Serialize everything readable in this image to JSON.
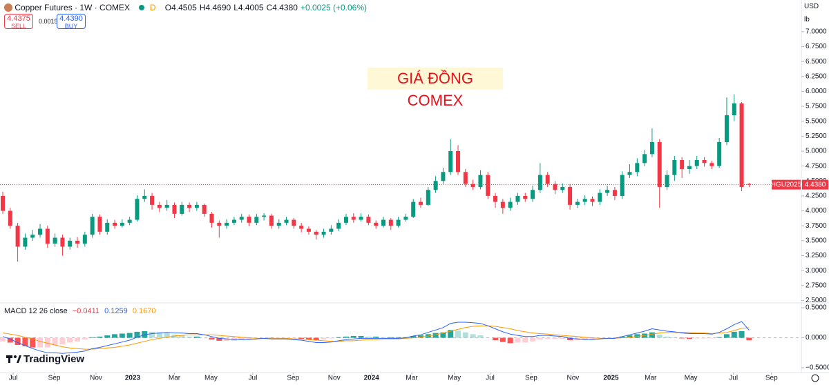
{
  "header": {
    "symbol": "Copper Futures · 1W · COMEX",
    "interval_badge": "D",
    "ohlc": [
      "O4.4505",
      "H4.4690",
      "L4.4005",
      "C4.4380",
      "+0.0025 (+0.06%)"
    ],
    "sell_price": "4.4375",
    "sell": "SELL",
    "spread": "0.0015",
    "buy_price": "4.4390",
    "buy": "BUY",
    "currency": "USD",
    "unit": "lb",
    "brand": "TradingView"
  },
  "chart_data": [
    {
      "type": "candlestick",
      "annotation": "GIÁ ĐỒNG COMEX",
      "up_color": "#089981",
      "down_color": "#f23645",
      "last_price_label": {
        "symbol": "HGU2025",
        "price": "4.4380"
      },
      "open": [
        4.25,
        4.0,
        3.75,
        3.4,
        3.55,
        3.6,
        3.7,
        3.45,
        3.55,
        3.4,
        3.5,
        3.45,
        3.6,
        3.9,
        3.65,
        3.8,
        3.75,
        3.8,
        3.85,
        4.2,
        4.25,
        4.1,
        4.05,
        4.1,
        3.95,
        4.1,
        4.05,
        4.1,
        3.95,
        3.8,
        3.75,
        3.8,
        3.85,
        3.9,
        3.8,
        3.9,
        3.92,
        3.75,
        3.8,
        3.85,
        3.75,
        3.7,
        3.65,
        3.6,
        3.65,
        3.7,
        3.8,
        3.9,
        3.85,
        3.9,
        3.8,
        3.75,
        3.85,
        3.75,
        3.85,
        3.9,
        4.15,
        4.1,
        4.35,
        4.5,
        4.65,
        5.0,
        4.65,
        4.45,
        4.4,
        4.6,
        4.25,
        4.15,
        4.05,
        4.15,
        4.25,
        4.2,
        4.35,
        4.6,
        4.45,
        4.35,
        4.4,
        4.1,
        4.15,
        4.2,
        4.15,
        4.3,
        4.35,
        4.25,
        4.6,
        4.65,
        4.8,
        4.95,
        5.15,
        4.4,
        4.6,
        4.85,
        4.7,
        4.75,
        4.85,
        4.8,
        4.75,
        5.15,
        5.6,
        5.8,
        4.4505
      ],
      "high": [
        4.32,
        4.05,
        3.8,
        3.62,
        3.68,
        3.78,
        3.75,
        3.62,
        3.6,
        3.55,
        3.56,
        3.65,
        3.95,
        3.94,
        3.86,
        3.85,
        3.86,
        3.9,
        4.26,
        4.36,
        4.3,
        4.15,
        4.18,
        4.14,
        4.15,
        4.14,
        4.15,
        4.12,
        3.98,
        3.84,
        3.86,
        3.9,
        3.95,
        3.94,
        3.95,
        3.96,
        3.95,
        3.86,
        3.9,
        3.88,
        3.8,
        3.74,
        3.68,
        3.7,
        3.76,
        3.86,
        3.95,
        3.96,
        3.96,
        3.94,
        3.84,
        3.9,
        3.88,
        3.9,
        3.95,
        4.2,
        4.22,
        4.4,
        4.58,
        4.72,
        5.2,
        5.1,
        4.7,
        4.52,
        4.68,
        4.65,
        4.3,
        4.2,
        4.22,
        4.3,
        4.3,
        4.42,
        4.8,
        4.65,
        4.5,
        4.46,
        4.45,
        4.2,
        4.26,
        4.24,
        4.36,
        4.42,
        4.4,
        4.66,
        4.78,
        4.88,
        5.02,
        5.38,
        5.2,
        4.68,
        4.92,
        4.9,
        4.85,
        4.92,
        4.9,
        4.84,
        5.22,
        5.9,
        5.95,
        5.82,
        4.469
      ],
      "low": [
        3.95,
        3.7,
        3.15,
        3.35,
        3.5,
        3.55,
        3.38,
        3.4,
        3.25,
        3.35,
        3.38,
        3.4,
        3.55,
        3.6,
        3.6,
        3.7,
        3.72,
        3.76,
        3.82,
        4.15,
        4.02,
        3.98,
        4.0,
        3.88,
        3.92,
        3.98,
        4.0,
        3.9,
        3.72,
        3.55,
        3.7,
        3.76,
        3.8,
        3.74,
        3.76,
        3.84,
        3.7,
        3.7,
        3.76,
        3.7,
        3.64,
        3.6,
        3.52,
        3.55,
        3.6,
        3.66,
        3.76,
        3.8,
        3.82,
        3.76,
        3.7,
        3.72,
        3.68,
        3.72,
        3.82,
        3.88,
        4.05,
        4.08,
        4.3,
        4.45,
        4.6,
        4.6,
        4.4,
        4.35,
        4.36,
        4.2,
        4.05,
        3.95,
        4.0,
        4.1,
        4.15,
        4.15,
        4.3,
        4.4,
        4.28,
        4.3,
        4.02,
        4.05,
        4.1,
        4.08,
        4.1,
        4.25,
        4.18,
        4.2,
        4.55,
        4.58,
        4.75,
        4.9,
        4.05,
        4.35,
        4.5,
        4.55,
        4.62,
        4.7,
        4.74,
        4.7,
        4.72,
        5.1,
        5.5,
        4.33,
        4.4005
      ],
      "close": [
        4.0,
        3.75,
        3.4,
        3.55,
        3.6,
        3.7,
        3.45,
        3.55,
        3.4,
        3.5,
        3.45,
        3.6,
        3.9,
        3.65,
        3.8,
        3.75,
        3.8,
        3.85,
        4.2,
        4.25,
        4.1,
        4.05,
        4.1,
        3.95,
        4.1,
        4.05,
        4.1,
        3.95,
        3.8,
        3.75,
        3.8,
        3.85,
        3.9,
        3.8,
        3.9,
        3.92,
        3.75,
        3.8,
        3.85,
        3.75,
        3.7,
        3.65,
        3.6,
        3.65,
        3.7,
        3.8,
        3.9,
        3.85,
        3.9,
        3.8,
        3.75,
        3.85,
        3.75,
        3.85,
        3.9,
        4.15,
        4.1,
        4.35,
        4.5,
        4.65,
        5.0,
        4.65,
        4.45,
        4.4,
        4.6,
        4.25,
        4.15,
        4.05,
        4.15,
        4.25,
        4.2,
        4.35,
        4.6,
        4.45,
        4.35,
        4.4,
        4.1,
        4.15,
        4.2,
        4.15,
        4.3,
        4.35,
        4.25,
        4.6,
        4.65,
        4.8,
        4.95,
        5.15,
        4.4,
        4.6,
        4.85,
        4.7,
        4.75,
        4.85,
        4.8,
        4.75,
        5.15,
        5.6,
        5.8,
        4.4,
        4.438
      ],
      "xlim": [
        -0.37,
        107
      ],
      "ylim": [
        2.47,
        7.53
      ],
      "yticks": [
        {
          "value": 2.5,
          "label": "2.5000"
        },
        {
          "value": 2.75,
          "label": "2.7500"
        },
        {
          "value": 3,
          "label": "3.0000"
        },
        {
          "value": 3.25,
          "label": "3.2500"
        },
        {
          "value": 3.5,
          "label": "3.5000"
        },
        {
          "value": 3.75,
          "label": "3.7500"
        },
        {
          "value": 4,
          "label": "4.0000"
        },
        {
          "value": 4.25,
          "label": "4.2500"
        },
        {
          "value": 4.5,
          "label": "4.5000"
        },
        {
          "value": 4.75,
          "label": "4.7500"
        },
        {
          "value": 5,
          "label": "5.0000"
        },
        {
          "value": 5.25,
          "label": "5.2500"
        },
        {
          "value": 5.5,
          "label": "5.5000"
        },
        {
          "value": 5.75,
          "label": "5.7500"
        },
        {
          "value": 6,
          "label": "6.0000"
        },
        {
          "value": 6.25,
          "label": "6.2500"
        },
        {
          "value": 6.5,
          "label": "6.5000"
        },
        {
          "value": 6.75,
          "label": "6.7500"
        },
        {
          "value": 7,
          "label": "7.0000"
        }
      ],
      "xticks": [
        {
          "value": 1.4,
          "label": "Jul"
        },
        {
          "value": 6.9,
          "label": "Sep"
        },
        {
          "value": 12.5,
          "label": "Nov"
        },
        {
          "value": 17.4,
          "label": "2023"
        },
        {
          "value": 23.0,
          "label": "Mar"
        },
        {
          "value": 27.9,
          "label": "May"
        },
        {
          "value": 33.5,
          "label": "Jul"
        },
        {
          "value": 38.9,
          "label": "Sep"
        },
        {
          "value": 44.4,
          "label": "Nov"
        },
        {
          "value": 49.4,
          "label": "2024"
        },
        {
          "value": 54.8,
          "label": "Mar"
        },
        {
          "value": 60.5,
          "label": "May"
        },
        {
          "value": 65.3,
          "label": "Jul"
        },
        {
          "value": 70.8,
          "label": "Sep"
        },
        {
          "value": 76.4,
          "label": "Nov"
        },
        {
          "value": 81.5,
          "label": "2025"
        },
        {
          "value": 86.8,
          "label": "Mar"
        },
        {
          "value": 92.2,
          "label": "May"
        },
        {
          "value": 97.9,
          "label": "Jul"
        },
        {
          "value": 103.0,
          "label": "Sep"
        }
      ]
    },
    {
      "type": "macd",
      "title": "MACD 12 26 close",
      "legend_values": [
        "−0.0411",
        "0.1259",
        "0.1670"
      ],
      "macd_color": "#2962ff",
      "signal_color": "#ff9800",
      "histogram_colors": [
        "#26a69a",
        "#b2dfdb",
        "#ffcdd2",
        "#ff5252"
      ],
      "histogram": [
        -0.06,
        -0.08,
        -0.12,
        -0.14,
        -0.16,
        -0.16,
        -0.16,
        -0.13,
        -0.11,
        -0.08,
        -0.06,
        -0.03,
        0.01,
        0.02,
        0.04,
        0.06,
        0.07,
        0.08,
        0.1,
        0.11,
        0.1,
        0.09,
        0.08,
        0.05,
        0.04,
        0.02,
        0.02,
        0.0,
        -0.03,
        -0.05,
        -0.05,
        -0.05,
        -0.04,
        -0.03,
        -0.01,
        0.0,
        -0.01,
        -0.01,
        -0.01,
        -0.01,
        -0.02,
        -0.03,
        -0.04,
        -0.03,
        -0.01,
        0.01,
        0.02,
        0.03,
        0.03,
        0.02,
        0.02,
        0.01,
        0.01,
        0.01,
        0.01,
        0.03,
        0.04,
        0.06,
        0.08,
        0.09,
        0.13,
        0.12,
        0.09,
        0.06,
        0.04,
        0.0,
        -0.04,
        -0.07,
        -0.09,
        -0.08,
        -0.08,
        -0.06,
        -0.03,
        -0.02,
        -0.02,
        -0.02,
        -0.04,
        -0.04,
        -0.04,
        -0.03,
        -0.01,
        0.0,
        0.0,
        0.02,
        0.04,
        0.06,
        0.07,
        0.09,
        0.05,
        0.02,
        0.01,
        -0.01,
        -0.02,
        -0.01,
        -0.01,
        -0.01,
        0.01,
        0.06,
        0.1,
        0.11,
        -0.0411
      ],
      "macd": [
        0.02,
        -0.02,
        -0.08,
        -0.13,
        -0.18,
        -0.22,
        -0.25,
        -0.25,
        -0.26,
        -0.25,
        -0.24,
        -0.22,
        -0.18,
        -0.16,
        -0.13,
        -0.1,
        -0.07,
        -0.04,
        0.01,
        0.05,
        0.07,
        0.08,
        0.09,
        0.08,
        0.08,
        0.07,
        0.07,
        0.05,
        0.02,
        -0.01,
        -0.02,
        -0.03,
        -0.03,
        -0.03,
        -0.02,
        -0.01,
        -0.02,
        -0.02,
        -0.02,
        -0.03,
        -0.04,
        -0.06,
        -0.08,
        -0.08,
        -0.07,
        -0.05,
        -0.03,
        -0.02,
        -0.01,
        -0.01,
        -0.01,
        -0.01,
        -0.01,
        -0.01,
        0.0,
        0.03,
        0.05,
        0.09,
        0.13,
        0.17,
        0.24,
        0.26,
        0.26,
        0.25,
        0.24,
        0.2,
        0.15,
        0.1,
        0.06,
        0.04,
        0.02,
        0.02,
        0.04,
        0.04,
        0.03,
        0.02,
        -0.01,
        -0.02,
        -0.03,
        -0.03,
        -0.02,
        -0.01,
        -0.01,
        0.02,
        0.05,
        0.08,
        0.11,
        0.15,
        0.13,
        0.11,
        0.1,
        0.08,
        0.07,
        0.07,
        0.07,
        0.06,
        0.09,
        0.15,
        0.22,
        0.27,
        0.1259
      ],
      "signal": [
        0.08,
        0.06,
        0.04,
        0.01,
        -0.02,
        -0.06,
        -0.09,
        -0.12,
        -0.15,
        -0.17,
        -0.18,
        -0.19,
        -0.19,
        -0.18,
        -0.17,
        -0.16,
        -0.14,
        -0.12,
        -0.09,
        -0.06,
        -0.03,
        -0.01,
        0.01,
        0.03,
        0.04,
        0.05,
        0.05,
        0.05,
        0.05,
        0.04,
        0.03,
        0.02,
        0.01,
        0.0,
        -0.01,
        -0.01,
        -0.01,
        -0.01,
        -0.01,
        -0.02,
        -0.02,
        -0.03,
        -0.04,
        -0.05,
        -0.06,
        -0.06,
        -0.05,
        -0.05,
        -0.04,
        -0.03,
        -0.03,
        -0.02,
        -0.02,
        -0.02,
        -0.01,
        0.0,
        0.01,
        0.03,
        0.05,
        0.08,
        0.11,
        0.14,
        0.17,
        0.19,
        0.2,
        0.2,
        0.19,
        0.17,
        0.15,
        0.12,
        0.1,
        0.08,
        0.07,
        0.06,
        0.05,
        0.04,
        0.03,
        0.02,
        0.01,
        0.0,
        -0.01,
        -0.01,
        -0.01,
        0.0,
        0.01,
        0.02,
        0.04,
        0.06,
        0.08,
        0.09,
        0.09,
        0.09,
        0.09,
        0.08,
        0.08,
        0.07,
        0.08,
        0.09,
        0.12,
        0.16,
        0.167
      ],
      "ylim": [
        -0.58,
        0.57
      ],
      "yticks": [
        {
          "value": 0.5,
          "label": "0.5000"
        },
        {
          "value": 0,
          "label": "0.0000"
        },
        {
          "value": -0.5,
          "label": "−0.5000"
        }
      ]
    }
  ]
}
